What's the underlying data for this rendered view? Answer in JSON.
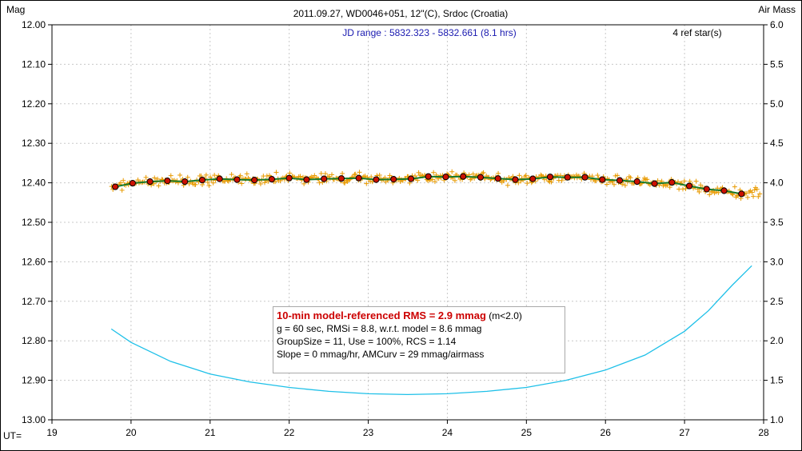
{
  "chart_data": {
    "type": "scatter",
    "title": "2011.09.27, WD0046+051, 12\"(C), Srdoc (Croatia)",
    "subtitle": "JD range : 5832.323 - 5832.661 (8.1 hrs)",
    "ref_stars": "4 ref star(s)",
    "y_left_label": "Mag",
    "y_right_label": "Air Mass",
    "x_label": "UT=",
    "xlim": [
      19,
      28
    ],
    "ylim_left": [
      13.0,
      12.0
    ],
    "ylim_right": [
      1.0,
      6.0
    ],
    "x_ticks": [
      "19",
      "20",
      "21",
      "22",
      "23",
      "24",
      "25",
      "26",
      "27",
      "28"
    ],
    "y_left_ticks": [
      "12.00",
      "12.10",
      "12.20",
      "12.30",
      "12.40",
      "12.50",
      "12.60",
      "12.70",
      "12.80",
      "12.90",
      "13.00"
    ],
    "y_right_ticks": [
      "6.0",
      "5.5",
      "5.0",
      "4.5",
      "4.0",
      "3.5",
      "3.0",
      "2.5",
      "2.0",
      "1.5",
      "1.0"
    ],
    "grid": true,
    "colors": {
      "raw_points": "#e89a00",
      "binned_fill": "#cc1100",
      "binned_stroke": "#000000",
      "model_line": "#1a7a2a",
      "airmass_line": "#1ec0e8",
      "title_blue": "#1a1ab0",
      "rms_red": "#cc0000"
    },
    "series": [
      {
        "kind": "binned_mag",
        "x": [
          19.8,
          20.02,
          20.24,
          20.46,
          20.68,
          20.9,
          21.12,
          21.34,
          21.56,
          21.78,
          22.0,
          22.22,
          22.44,
          22.66,
          22.88,
          23.1,
          23.32,
          23.54,
          23.76,
          23.98,
          24.2,
          24.42,
          24.64,
          24.86,
          25.08,
          25.3,
          25.52,
          25.74,
          25.96,
          26.18,
          26.4,
          26.62,
          26.84,
          27.06,
          27.28,
          27.5,
          27.72
        ],
        "y": [
          12.41,
          12.401,
          12.397,
          12.395,
          12.397,
          12.393,
          12.39,
          12.392,
          12.393,
          12.391,
          12.388,
          12.392,
          12.39,
          12.389,
          12.388,
          12.392,
          12.391,
          12.39,
          12.384,
          12.385,
          12.384,
          12.386,
          12.389,
          12.392,
          12.39,
          12.385,
          12.386,
          12.386,
          12.392,
          12.394,
          12.397,
          12.402,
          12.399,
          12.408,
          12.416,
          12.42,
          12.428
        ]
      },
      {
        "kind": "airmass",
        "x": [
          19.75,
          20.0,
          20.5,
          21.0,
          21.5,
          22.0,
          22.5,
          23.0,
          23.5,
          24.0,
          24.5,
          25.0,
          25.5,
          26.0,
          26.5,
          27.0,
          27.3,
          27.6,
          27.85
        ],
        "y": [
          2.15,
          1.98,
          1.74,
          1.58,
          1.48,
          1.41,
          1.36,
          1.33,
          1.32,
          1.33,
          1.36,
          1.41,
          1.5,
          1.63,
          1.82,
          2.12,
          2.38,
          2.7,
          2.95
        ]
      }
    ],
    "stats": {
      "headline": "10-min model-referenced RMS = 2.9 mmag",
      "headline_suffix": " (m<2.0)",
      "line2": "g = 60 sec, RMSi = 8.8, w.r.t. model = 8.6 mmag",
      "line3": "GroupSize = 11, Use = 100%, RCS = 1.14",
      "line4": "Slope = 0 mmag/hr, AMCurv = 29 mmag/airmass"
    }
  }
}
